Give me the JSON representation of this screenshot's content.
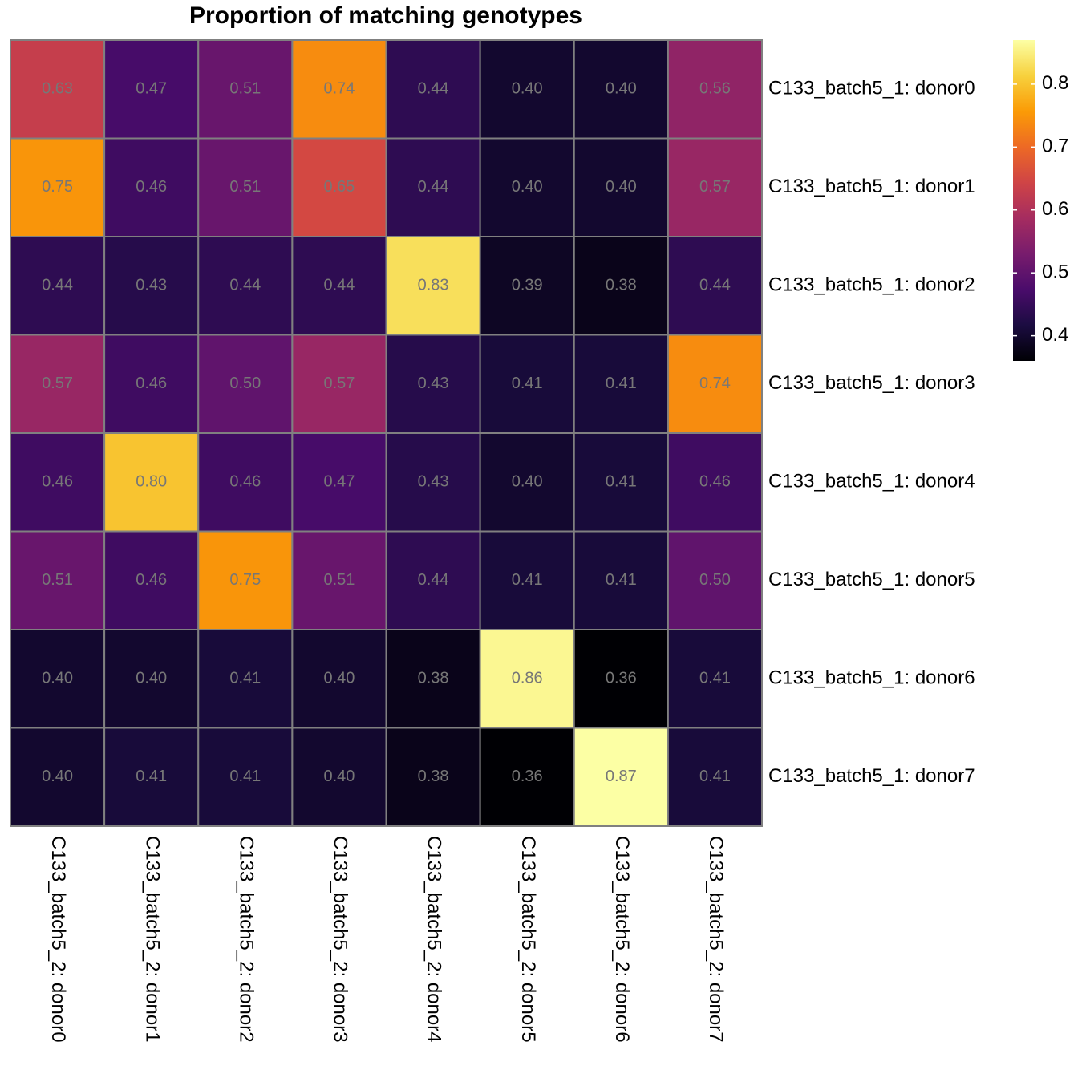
{
  "chart_data": {
    "type": "heatmap",
    "title": "Proportion of matching genotypes",
    "x_categories": [
      "C133_batch5_2: donor0",
      "C133_batch5_2: donor1",
      "C133_batch5_2: donor2",
      "C133_batch5_2: donor3",
      "C133_batch5_2: donor4",
      "C133_batch5_2: donor5",
      "C133_batch5_2: donor6",
      "C133_batch5_2: donor7"
    ],
    "y_categories": [
      "C133_batch5_1: donor0",
      "C133_batch5_1: donor1",
      "C133_batch5_1: donor2",
      "C133_batch5_1: donor3",
      "C133_batch5_1: donor4",
      "C133_batch5_1: donor5",
      "C133_batch5_1: donor6",
      "C133_batch5_1: donor7"
    ],
    "values": [
      [
        0.63,
        0.47,
        0.51,
        0.74,
        0.44,
        0.4,
        0.4,
        0.56
      ],
      [
        0.75,
        0.46,
        0.51,
        0.65,
        0.44,
        0.4,
        0.4,
        0.57
      ],
      [
        0.44,
        0.43,
        0.44,
        0.44,
        0.83,
        0.39,
        0.38,
        0.44
      ],
      [
        0.57,
        0.46,
        0.5,
        0.57,
        0.43,
        0.41,
        0.41,
        0.74
      ],
      [
        0.46,
        0.8,
        0.46,
        0.47,
        0.43,
        0.4,
        0.41,
        0.46
      ],
      [
        0.51,
        0.46,
        0.75,
        0.51,
        0.44,
        0.41,
        0.41,
        0.5
      ],
      [
        0.4,
        0.4,
        0.41,
        0.4,
        0.38,
        0.86,
        0.36,
        0.41
      ],
      [
        0.4,
        0.41,
        0.41,
        0.4,
        0.38,
        0.36,
        0.87,
        0.41
      ]
    ],
    "value_labels": [
      [
        "0.63",
        "0.47",
        "0.51",
        "0.74",
        "0.44",
        "0.40",
        "0.40",
        "0.56"
      ],
      [
        "0.75",
        "0.46",
        "0.51",
        "0.65",
        "0.44",
        "0.40",
        "0.40",
        "0.57"
      ],
      [
        "0.44",
        "0.43",
        "0.44",
        "0.44",
        "0.83",
        "0.39",
        "0.38",
        "0.44"
      ],
      [
        "0.57",
        "0.46",
        "0.50",
        "0.57",
        "0.43",
        "0.41",
        "0.41",
        "0.74"
      ],
      [
        "0.46",
        "0.80",
        "0.46",
        "0.47",
        "0.43",
        "0.40",
        "0.41",
        "0.46"
      ],
      [
        "0.51",
        "0.46",
        "0.75",
        "0.51",
        "0.44",
        "0.41",
        "0.41",
        "0.50"
      ],
      [
        "0.40",
        "0.40",
        "0.41",
        "0.40",
        "0.38",
        "0.86",
        "0.36",
        "0.41"
      ],
      [
        "0.40",
        "0.41",
        "0.41",
        "0.40",
        "0.38",
        "0.36",
        "0.87",
        "0.41"
      ]
    ],
    "colormap": "inferno",
    "zlim": [
      0.36,
      0.87
    ],
    "zticks": [
      0.4,
      0.5,
      0.6,
      0.7,
      0.8
    ]
  }
}
